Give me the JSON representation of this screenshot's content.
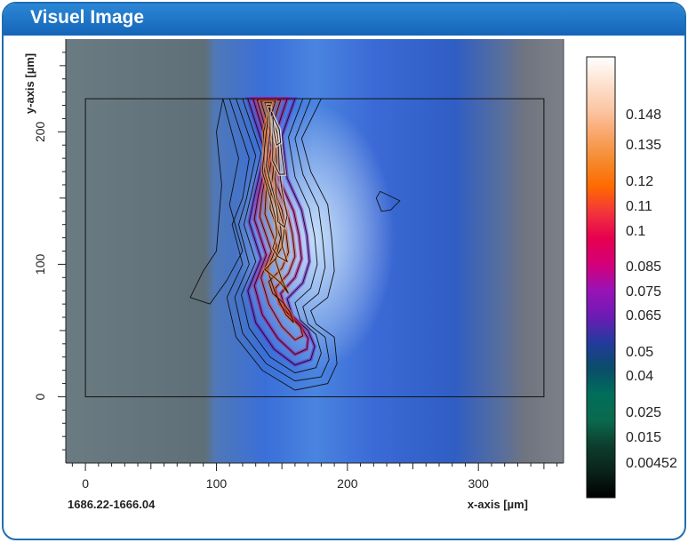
{
  "window": {
    "title": "Visuel Image"
  },
  "footer": {
    "position_label": "1686.22-1666.04"
  },
  "chart_data": {
    "type": "contour",
    "title": "",
    "xlabel": "x-axis [µm]",
    "ylabel": "y-axis [µm]",
    "xlim": [
      -15,
      365
    ],
    "ylim": [
      -50,
      270
    ],
    "x_ticks": [
      0,
      100,
      200,
      300
    ],
    "y_ticks": [
      0,
      100,
      200
    ],
    "grid": false,
    "region_rect": {
      "x": [
        0,
        350
      ],
      "y": [
        0,
        225
      ]
    },
    "colorbar": {
      "labels": [
        0.148,
        0.135,
        0.12,
        0.11,
        0.1,
        0.085,
        0.075,
        0.065,
        0.05,
        0.04,
        0.025,
        0.015,
        0.00452
      ],
      "colors": [
        "#ffffff",
        "#fde2d0",
        "#fcc7a6",
        "#f9a66a",
        "#f58a2d",
        "#ff6a00",
        "#f2343c",
        "#e6004f",
        "#d40079",
        "#9a12b6",
        "#6d1bb5",
        "#243a9e",
        "#0a4c6a",
        "#006e5a",
        "#0a6a4e",
        "#0d3d2e",
        "#0a221a",
        "#000000"
      ]
    },
    "contour_levels_count": 20,
    "contours": [
      {
        "level": 0.00452,
        "points": [
          [
            105,
            225
          ],
          [
            117,
            180
          ],
          [
            110,
            145
          ],
          [
            120,
            110
          ],
          [
            108,
            88
          ],
          [
            95,
            70
          ],
          [
            80,
            75
          ],
          [
            90,
            95
          ],
          [
            100,
            110
          ],
          [
            102,
            135
          ],
          [
            104,
            160
          ],
          [
            100,
            200
          ]
        ]
      },
      {
        "level": 0.00452,
        "points": [
          [
            225,
            155
          ],
          [
            240,
            148
          ],
          [
            233,
            141
          ],
          [
            226,
            140
          ],
          [
            222,
            150
          ]
        ]
      },
      {
        "level": 0.015,
        "points": [
          [
            110,
            225
          ],
          [
            125,
            180
          ],
          [
            120,
            150
          ],
          [
            112,
            130
          ],
          [
            120,
            100
          ],
          [
            108,
            75
          ],
          [
            115,
            45
          ],
          [
            135,
            20
          ],
          [
            160,
            5
          ],
          [
            185,
            10
          ],
          [
            192,
            25
          ],
          [
            190,
            45
          ],
          [
            176,
            55
          ],
          [
            172,
            65
          ],
          [
            185,
            75
          ],
          [
            190,
            95
          ],
          [
            188,
            120
          ],
          [
            185,
            145
          ],
          [
            172,
            170
          ],
          [
            165,
            195
          ],
          [
            180,
            225
          ]
        ]
      },
      {
        "level": 0.025,
        "points": [
          [
            115,
            225
          ],
          [
            130,
            182
          ],
          [
            123,
            150
          ],
          [
            117,
            130
          ],
          [
            125,
            100
          ],
          [
            114,
            75
          ],
          [
            120,
            48
          ],
          [
            138,
            25
          ],
          [
            160,
            12
          ],
          [
            180,
            15
          ],
          [
            186,
            28
          ],
          [
            183,
            45
          ],
          [
            170,
            55
          ],
          [
            166,
            68
          ],
          [
            178,
            78
          ],
          [
            183,
            98
          ],
          [
            181,
            120
          ],
          [
            178,
            143
          ],
          [
            166,
            168
          ],
          [
            160,
            195
          ],
          [
            172,
            225
          ]
        ]
      },
      {
        "level": 0.04,
        "points": [
          [
            120,
            225
          ],
          [
            134,
            184
          ],
          [
            126,
            150
          ],
          [
            121,
            130
          ],
          [
            130,
            102
          ],
          [
            119,
            77
          ],
          [
            125,
            52
          ],
          [
            141,
            30
          ],
          [
            160,
            18
          ],
          [
            176,
            22
          ],
          [
            180,
            33
          ],
          [
            176,
            47
          ],
          [
            164,
            58
          ],
          [
            160,
            71
          ],
          [
            172,
            82
          ],
          [
            177,
            100
          ],
          [
            175,
            121
          ],
          [
            171,
            142
          ],
          [
            160,
            166
          ],
          [
            155,
            196
          ],
          [
            166,
            225
          ]
        ]
      },
      {
        "level": 0.05,
        "points": [
          [
            124,
            225
          ],
          [
            137,
            185
          ],
          [
            129,
            151
          ],
          [
            125,
            132
          ],
          [
            134,
            104
          ],
          [
            124,
            80
          ],
          [
            130,
            56
          ],
          [
            144,
            36
          ],
          [
            160,
            24
          ],
          [
            172,
            28
          ],
          [
            175,
            38
          ],
          [
            170,
            50
          ],
          [
            158,
            61
          ],
          [
            154,
            74
          ],
          [
            166,
            86
          ],
          [
            171,
            102
          ],
          [
            169,
            122
          ],
          [
            165,
            141
          ],
          [
            154,
            165
          ],
          [
            150,
            197
          ],
          [
            160,
            225
          ]
        ]
      },
      {
        "level": 0.065,
        "points": [
          [
            128,
            225
          ],
          [
            140,
            186
          ],
          [
            132,
            152
          ],
          [
            129,
            134
          ],
          [
            138,
            107
          ],
          [
            129,
            84
          ],
          [
            135,
            62
          ],
          [
            147,
            44
          ],
          [
            160,
            32
          ],
          [
            169,
            36
          ],
          [
            170,
            44
          ],
          [
            164,
            54
          ],
          [
            153,
            65
          ],
          [
            149,
            78
          ],
          [
            160,
            90
          ],
          [
            165,
            104
          ],
          [
            163,
            122
          ],
          [
            159,
            140
          ],
          [
            148,
            164
          ],
          [
            145,
            198
          ],
          [
            154,
            225
          ]
        ]
      },
      {
        "level": 0.075,
        "points": [
          [
            131,
            224
          ],
          [
            142,
            188
          ],
          [
            135,
            154
          ],
          [
            133,
            136
          ],
          [
            142,
            110
          ],
          [
            134,
            90
          ],
          [
            140,
            70
          ],
          [
            150,
            53
          ],
          [
            160,
            43
          ],
          [
            166,
            46
          ],
          [
            164,
            53
          ],
          [
            157,
            60
          ],
          [
            148,
            70
          ],
          [
            145,
            82
          ],
          [
            155,
            93
          ],
          [
            160,
            106
          ],
          [
            158,
            123
          ],
          [
            154,
            140
          ],
          [
            144,
            165
          ],
          [
            141,
            199
          ],
          [
            149,
            224
          ]
        ]
      },
      {
        "level": 0.085,
        "points": [
          [
            134,
            223
          ],
          [
            144,
            190
          ],
          [
            138,
            156
          ],
          [
            137,
            138
          ],
          [
            146,
            114
          ],
          [
            139,
            96
          ],
          [
            145,
            78
          ],
          [
            153,
            62
          ],
          [
            159,
            56
          ],
          [
            156,
            64
          ],
          [
            151,
            71
          ],
          [
            143,
            78
          ],
          [
            140,
            87
          ],
          [
            150,
            97
          ],
          [
            155,
            109
          ],
          [
            153,
            125
          ],
          [
            150,
            141
          ],
          [
            140,
            166
          ],
          [
            138,
            200
          ],
          [
            145,
            223
          ]
        ]
      },
      {
        "level": 0.1,
        "points": [
          [
            137,
            222
          ],
          [
            146,
            192
          ],
          [
            142,
            160
          ],
          [
            141,
            142
          ],
          [
            149,
            120
          ],
          [
            145,
            103
          ],
          [
            150,
            88
          ],
          [
            155,
            78
          ],
          [
            149,
            86
          ],
          [
            142,
            92
          ],
          [
            137,
            96
          ],
          [
            145,
            104
          ],
          [
            150,
            113
          ],
          [
            149,
            128
          ],
          [
            146,
            142
          ],
          [
            137,
            168
          ],
          [
            136,
            200
          ],
          [
            142,
            222
          ]
        ]
      },
      {
        "level": 0.11,
        "points": [
          [
            139,
            220
          ],
          [
            147,
            195
          ],
          [
            145,
            165
          ],
          [
            146,
            148
          ],
          [
            152,
            127
          ],
          [
            150,
            114
          ],
          [
            154,
            102
          ],
          [
            147,
            106
          ],
          [
            143,
            112
          ],
          [
            146,
            122
          ],
          [
            145,
            135
          ],
          [
            142,
            147
          ],
          [
            135,
            170
          ],
          [
            138,
            200
          ],
          [
            141,
            220
          ]
        ]
      },
      {
        "level": 0.12,
        "points": [
          [
            140,
            218
          ],
          [
            147,
            198
          ],
          [
            148,
            172
          ],
          [
            150,
            156
          ],
          [
            154,
            137
          ],
          [
            152,
            128
          ],
          [
            147,
            132
          ],
          [
            146,
            142
          ],
          [
            144,
            152
          ],
          [
            138,
            174
          ],
          [
            141,
            200
          ],
          [
            141,
            218
          ]
        ]
      },
      {
        "level": 0.135,
        "points": [
          [
            142,
            215
          ],
          [
            148,
            200
          ],
          [
            150,
            182
          ],
          [
            152,
            168
          ],
          [
            148,
            168
          ],
          [
            143,
            178
          ],
          [
            143,
            200
          ],
          [
            142,
            215
          ]
        ]
      },
      {
        "level": 0.148,
        "points": [
          [
            143,
            212
          ],
          [
            148,
            202
          ],
          [
            149,
            192
          ],
          [
            146,
            190
          ],
          [
            144,
            200
          ]
        ]
      }
    ]
  }
}
